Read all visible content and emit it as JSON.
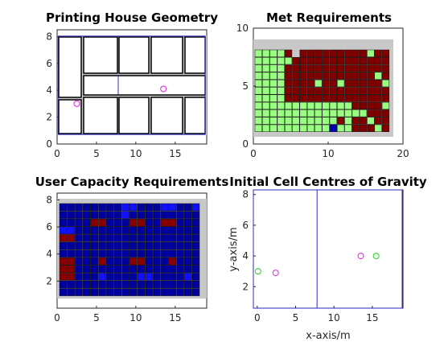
{
  "chart_data": [
    {
      "type": "other",
      "title": "Printing House Geometry",
      "xlim": [
        0,
        19
      ],
      "ylim": [
        0,
        8.5
      ],
      "xticks": [
        "0",
        "5",
        "10",
        "15"
      ],
      "yticks": [
        "0",
        "2",
        "4",
        "6",
        "8"
      ],
      "points": [
        {
          "x": 2.5,
          "y": 3.0,
          "color": "#e020e0"
        },
        {
          "x": 13.5,
          "y": 4.1,
          "color": "#e020e0"
        }
      ],
      "colors": {
        "wall": "#c8c8c8",
        "room_edge": "#000000",
        "boundary": "#2b2bc8",
        "room_fill": "#ffffff"
      }
    },
    {
      "type": "heatmap",
      "title": "Met Requirements",
      "xlim": [
        0,
        20
      ],
      "ylim": [
        0,
        10
      ],
      "xticks": [
        "0",
        "10",
        "20"
      ],
      "yticks": [
        "0",
        "5",
        "10"
      ],
      "legend_colors": {
        "met": "#99ff80",
        "unmet": "#800000",
        "other": "#0000b0"
      }
    },
    {
      "type": "heatmap",
      "title": "User Capacity Requirements",
      "xlim": [
        0,
        19
      ],
      "ylim": [
        0,
        8.5
      ],
      "xticks": [
        "0",
        "5",
        "10",
        "15"
      ],
      "yticks": [
        "2",
        "4",
        "6",
        "8"
      ],
      "legend_colors": {
        "low": "#0000a0",
        "medium": "#1010ff",
        "high": "#8a0000"
      }
    },
    {
      "type": "scatter",
      "title": "Initial Cell Centres of Gravity",
      "xlabel": "x-axis/m",
      "ylabel": "y-axis/m",
      "xlim": [
        -0.5,
        19
      ],
      "ylim": [
        0.6,
        8.3
      ],
      "xticks": [
        "0",
        "5",
        "10",
        "15"
      ],
      "yticks": [
        "2",
        "4",
        "6",
        "8"
      ],
      "series": [
        {
          "color": "#e020e0",
          "points": [
            {
              "x": 2.4,
              "y": 2.9
            },
            {
              "x": 13.5,
              "y": 4.0
            }
          ]
        },
        {
          "color": "#20d020",
          "points": [
            {
              "x": 0.1,
              "y": 3.0
            },
            {
              "x": 15.5,
              "y": 4.0
            }
          ]
        }
      ],
      "divider_x": 7.8
    }
  ]
}
